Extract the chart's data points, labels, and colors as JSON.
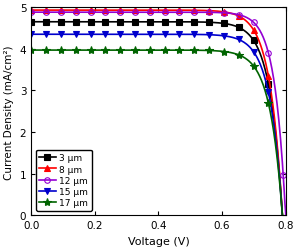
{
  "title": "",
  "xlabel": "Voltage (V)",
  "ylabel": "Current Density (mA/cm²)",
  "xlim": [
    0.0,
    0.8
  ],
  "ylim": [
    0.0,
    5.0
  ],
  "xticks": [
    0.0,
    0.2,
    0.4,
    0.6,
    0.8
  ],
  "yticks": [
    0,
    1,
    2,
    3,
    4,
    5
  ],
  "series": [
    {
      "label": "3 μm",
      "color": "#000000",
      "marker": "s",
      "Jsc": 4.65,
      "Voc": 0.79,
      "n": 1.5,
      "FF": 0.72
    },
    {
      "label": "8 μm",
      "color": "#ff0000",
      "marker": "^",
      "Jsc": 4.93,
      "Voc": 0.79,
      "n": 1.5,
      "FF": 0.72
    },
    {
      "label": "12 μm",
      "color": "#9400d3",
      "marker": "o",
      "Jsc": 4.88,
      "Voc": 0.8,
      "n": 1.3,
      "FF": 0.75
    },
    {
      "label": "15 μm",
      "color": "#0000cc",
      "marker": "v",
      "Jsc": 4.35,
      "Voc": 0.79,
      "n": 1.5,
      "FF": 0.72
    },
    {
      "label": "17 μm",
      "color": "#006400",
      "marker": "*",
      "Jsc": 3.97,
      "Voc": 0.79,
      "n": 1.5,
      "FF": 0.7
    }
  ],
  "legend_loc": "lower left",
  "markersize": 4.0,
  "star_markersize": 6.0,
  "linewidth": 1.2,
  "n_points": 300
}
